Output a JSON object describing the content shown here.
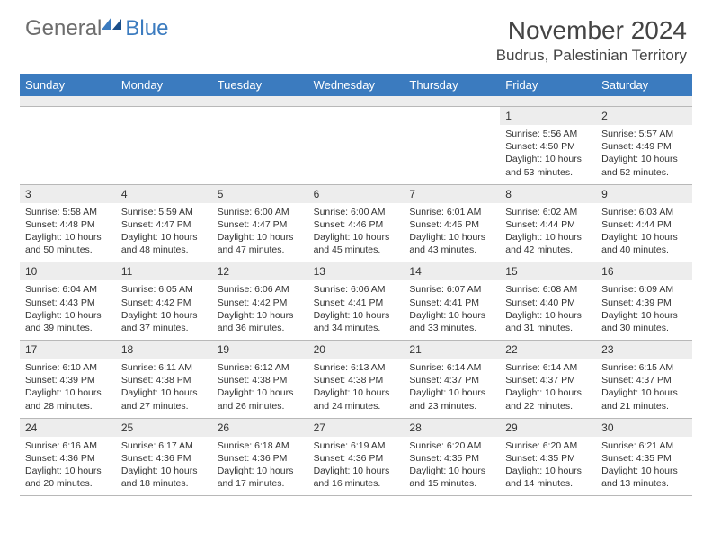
{
  "brand": {
    "part1": "General",
    "part2": "Blue"
  },
  "title": "November 2024",
  "location": "Budrus, Palestinian Territory",
  "colors": {
    "header_bg": "#3b7bbf",
    "header_text": "#ffffff",
    "stripe_bg": "#ededed",
    "border": "#b8b8b8",
    "text": "#333333",
    "title_text": "#444444",
    "logo_gray": "#6d6d6d",
    "logo_blue": "#3b7bbf",
    "background": "#ffffff"
  },
  "typography": {
    "month_title_fontsize": 28,
    "location_fontsize": 17,
    "dayheader_fontsize": 13,
    "daynum_fontsize": 12,
    "detail_fontsize": 10.5,
    "logo_fontsize": 24
  },
  "day_names": [
    "Sunday",
    "Monday",
    "Tuesday",
    "Wednesday",
    "Thursday",
    "Friday",
    "Saturday"
  ],
  "first_weekday_index": 5,
  "days": [
    {
      "n": 1,
      "sunrise": "5:56 AM",
      "sunset": "4:50 PM",
      "daylight": "10 hours and 53 minutes."
    },
    {
      "n": 2,
      "sunrise": "5:57 AM",
      "sunset": "4:49 PM",
      "daylight": "10 hours and 52 minutes."
    },
    {
      "n": 3,
      "sunrise": "5:58 AM",
      "sunset": "4:48 PM",
      "daylight": "10 hours and 50 minutes."
    },
    {
      "n": 4,
      "sunrise": "5:59 AM",
      "sunset": "4:47 PM",
      "daylight": "10 hours and 48 minutes."
    },
    {
      "n": 5,
      "sunrise": "6:00 AM",
      "sunset": "4:47 PM",
      "daylight": "10 hours and 47 minutes."
    },
    {
      "n": 6,
      "sunrise": "6:00 AM",
      "sunset": "4:46 PM",
      "daylight": "10 hours and 45 minutes."
    },
    {
      "n": 7,
      "sunrise": "6:01 AM",
      "sunset": "4:45 PM",
      "daylight": "10 hours and 43 minutes."
    },
    {
      "n": 8,
      "sunrise": "6:02 AM",
      "sunset": "4:44 PM",
      "daylight": "10 hours and 42 minutes."
    },
    {
      "n": 9,
      "sunrise": "6:03 AM",
      "sunset": "4:44 PM",
      "daylight": "10 hours and 40 minutes."
    },
    {
      "n": 10,
      "sunrise": "6:04 AM",
      "sunset": "4:43 PM",
      "daylight": "10 hours and 39 minutes."
    },
    {
      "n": 11,
      "sunrise": "6:05 AM",
      "sunset": "4:42 PM",
      "daylight": "10 hours and 37 minutes."
    },
    {
      "n": 12,
      "sunrise": "6:06 AM",
      "sunset": "4:42 PM",
      "daylight": "10 hours and 36 minutes."
    },
    {
      "n": 13,
      "sunrise": "6:06 AM",
      "sunset": "4:41 PM",
      "daylight": "10 hours and 34 minutes."
    },
    {
      "n": 14,
      "sunrise": "6:07 AM",
      "sunset": "4:41 PM",
      "daylight": "10 hours and 33 minutes."
    },
    {
      "n": 15,
      "sunrise": "6:08 AM",
      "sunset": "4:40 PM",
      "daylight": "10 hours and 31 minutes."
    },
    {
      "n": 16,
      "sunrise": "6:09 AM",
      "sunset": "4:39 PM",
      "daylight": "10 hours and 30 minutes."
    },
    {
      "n": 17,
      "sunrise": "6:10 AM",
      "sunset": "4:39 PM",
      "daylight": "10 hours and 28 minutes."
    },
    {
      "n": 18,
      "sunrise": "6:11 AM",
      "sunset": "4:38 PM",
      "daylight": "10 hours and 27 minutes."
    },
    {
      "n": 19,
      "sunrise": "6:12 AM",
      "sunset": "4:38 PM",
      "daylight": "10 hours and 26 minutes."
    },
    {
      "n": 20,
      "sunrise": "6:13 AM",
      "sunset": "4:38 PM",
      "daylight": "10 hours and 24 minutes."
    },
    {
      "n": 21,
      "sunrise": "6:14 AM",
      "sunset": "4:37 PM",
      "daylight": "10 hours and 23 minutes."
    },
    {
      "n": 22,
      "sunrise": "6:14 AM",
      "sunset": "4:37 PM",
      "daylight": "10 hours and 22 minutes."
    },
    {
      "n": 23,
      "sunrise": "6:15 AM",
      "sunset": "4:37 PM",
      "daylight": "10 hours and 21 minutes."
    },
    {
      "n": 24,
      "sunrise": "6:16 AM",
      "sunset": "4:36 PM",
      "daylight": "10 hours and 20 minutes."
    },
    {
      "n": 25,
      "sunrise": "6:17 AM",
      "sunset": "4:36 PM",
      "daylight": "10 hours and 18 minutes."
    },
    {
      "n": 26,
      "sunrise": "6:18 AM",
      "sunset": "4:36 PM",
      "daylight": "10 hours and 17 minutes."
    },
    {
      "n": 27,
      "sunrise": "6:19 AM",
      "sunset": "4:36 PM",
      "daylight": "10 hours and 16 minutes."
    },
    {
      "n": 28,
      "sunrise": "6:20 AM",
      "sunset": "4:35 PM",
      "daylight": "10 hours and 15 minutes."
    },
    {
      "n": 29,
      "sunrise": "6:20 AM",
      "sunset": "4:35 PM",
      "daylight": "10 hours and 14 minutes."
    },
    {
      "n": 30,
      "sunrise": "6:21 AM",
      "sunset": "4:35 PM",
      "daylight": "10 hours and 13 minutes."
    }
  ],
  "labels": {
    "sunrise": "Sunrise:",
    "sunset": "Sunset:",
    "daylight": "Daylight:"
  }
}
